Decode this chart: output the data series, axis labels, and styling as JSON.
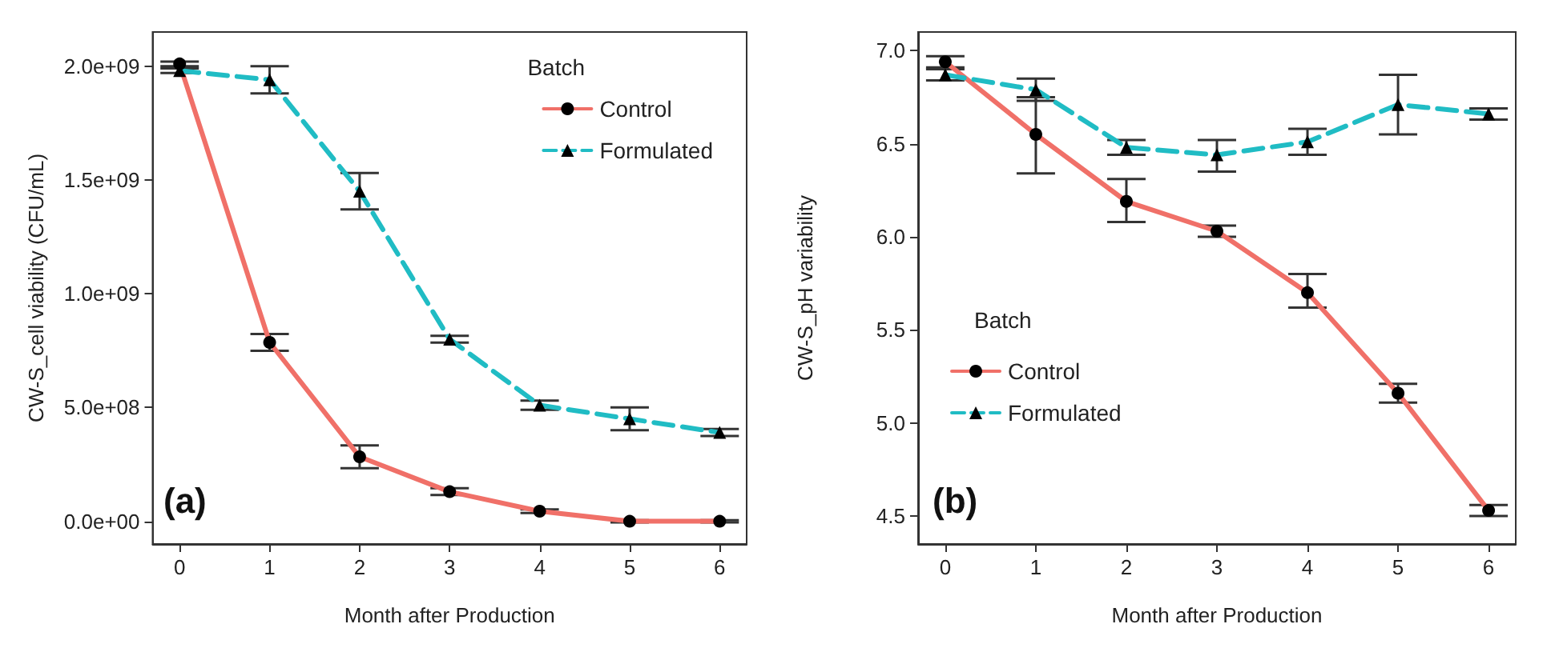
{
  "chart_data": [
    {
      "type": "line",
      "xlabel": "Month after Production",
      "ylabel": "CW-S_cell viability (CFU/mL)",
      "legend_title": "Batch",
      "legend": "top right",
      "grid": false,
      "annotations": [
        "(a)"
      ],
      "x": [
        0,
        1,
        2,
        3,
        4,
        5,
        6
      ],
      "xlim": [
        -0.3,
        6.3
      ],
      "xticks": [
        0,
        1,
        2,
        3,
        4,
        5,
        6
      ],
      "ylim": [
        -100000000,
        2150000000
      ],
      "yticks": [
        {
          "value": 0,
          "label": "0.0e+00"
        },
        {
          "value": 500000000,
          "label": "5.0e+08"
        },
        {
          "value": 1000000000,
          "label": "1.0e+09"
        },
        {
          "value": 1500000000,
          "label": "1.5e+09"
        },
        {
          "value": 2000000000,
          "label": "2.0e+09"
        }
      ],
      "series": [
        {
          "name": "Control",
          "color": "#f07068",
          "marker": "circle",
          "line_style": "solid",
          "values": [
            2010000000,
            786000000,
            283000000,
            130000000,
            44000000,
            0,
            0
          ],
          "errors": [
            10000000,
            37000000,
            50000000,
            15000000,
            8000000,
            5000000,
            5000000
          ]
        },
        {
          "name": "Formulated",
          "color": "#20bcc4",
          "marker": "triangle",
          "line_style": "dashed",
          "values": [
            1980000000,
            1940000000,
            1450000000,
            800000000,
            510000000,
            450000000,
            390000000
          ],
          "errors": [
            10000000,
            60000000,
            80000000,
            15000000,
            20000000,
            50000000,
            15000000
          ]
        }
      ]
    },
    {
      "type": "line",
      "xlabel": "Month after Production",
      "ylabel": "CW-S_pH variability",
      "legend_title": "Batch",
      "legend": "bottom left",
      "grid": false,
      "annotations": [
        "(b)"
      ],
      "x": [
        0,
        1,
        2,
        3,
        4,
        5,
        6
      ],
      "xlim": [
        -0.3,
        6.3
      ],
      "xticks": [
        0,
        1,
        2,
        3,
        4,
        5,
        6
      ],
      "ylim": [
        4.35,
        7.1
      ],
      "yticks": [
        {
          "value": 4.5,
          "label": "4.5"
        },
        {
          "value": 5,
          "label": "5.0"
        },
        {
          "value": 5.5,
          "label": "5.5"
        },
        {
          "value": 6,
          "label": "6.0"
        },
        {
          "value": 6.5,
          "label": "6.5"
        },
        {
          "value": 7,
          "label": "7.0"
        }
      ],
      "series": [
        {
          "name": "Control",
          "color": "#f07068",
          "marker": "circle",
          "line_style": "solid",
          "values": [
            6.94,
            6.55,
            6.19,
            6.03,
            5.7,
            5.16,
            4.53
          ],
          "errors": [
            0.03,
            [
              6.34,
              6.75
            ],
            [
              6.08,
              6.31
            ],
            0.03,
            [
              5.62,
              5.8
            ],
            0.05,
            0.03
          ]
        },
        {
          "name": "Formulated",
          "color": "#20bcc4",
          "marker": "triangle",
          "line_style": "dashed",
          "values": [
            6.87,
            6.79,
            6.48,
            6.44,
            6.51,
            6.71,
            6.66
          ],
          "errors": [
            0.03,
            [
              6.73,
              6.85
            ],
            0.04,
            [
              6.35,
              6.52
            ],
            [
              6.44,
              6.58
            ],
            [
              6.55,
              6.87
            ],
            0.03
          ]
        }
      ]
    }
  ]
}
